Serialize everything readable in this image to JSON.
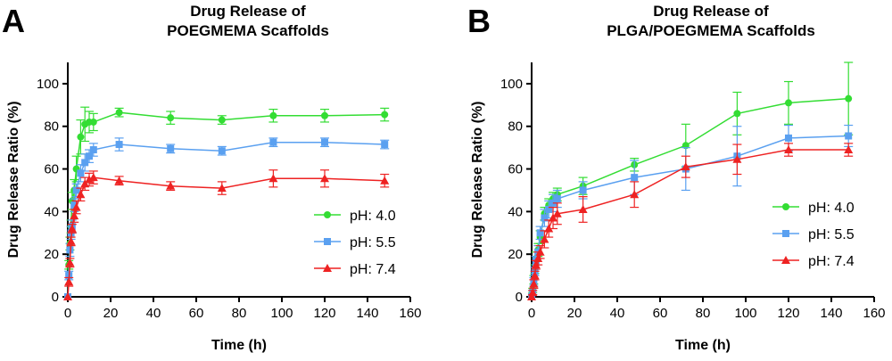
{
  "chart_data": [
    {
      "type": "line",
      "panel_label": "A",
      "title_lines": [
        "Drug Release of",
        "POEGMEMA Scaffolds"
      ],
      "xlabel": "Time (h)",
      "ylabel": "Drug Release Ratio (%)",
      "xlim": [
        0,
        160
      ],
      "ylim": [
        0,
        110
      ],
      "xticks": [
        0,
        20,
        40,
        60,
        80,
        100,
        120,
        140,
        160
      ],
      "yticks": [
        0,
        20,
        40,
        60,
        80,
        100
      ],
      "grid": false,
      "legend_position": "right",
      "series": [
        {
          "name": "pH: 4.0",
          "color": "#33dd33",
          "marker": "circle",
          "x": [
            0,
            0.5,
            1,
            1.5,
            2,
            3,
            4,
            6,
            8,
            10,
            12,
            24,
            48,
            72,
            96,
            120,
            148
          ],
          "y": [
            0,
            15,
            25,
            33,
            45,
            50,
            60,
            75,
            81,
            82,
            82,
            86.5,
            84,
            83,
            85,
            85,
            85.5
          ],
          "err": [
            0,
            2,
            3,
            3,
            4,
            5,
            6,
            8,
            8,
            5,
            4,
            2,
            3,
            2,
            3,
            3,
            3
          ]
        },
        {
          "name": "pH: 5.5",
          "color": "#5aa0f0",
          "marker": "square",
          "x": [
            0,
            0.5,
            1,
            1.5,
            2,
            3,
            4,
            6,
            8,
            10,
            12,
            24,
            48,
            72,
            96,
            120,
            148
          ],
          "y": [
            0,
            10,
            22,
            30,
            33,
            43,
            50,
            58,
            63,
            66,
            69,
            71.5,
            69.5,
            68.5,
            72.5,
            72.5,
            71.5
          ],
          "err": [
            0,
            2,
            3,
            3,
            3,
            3,
            3,
            4,
            4,
            3,
            3,
            3,
            2,
            2,
            2,
            2,
            2
          ]
        },
        {
          "name": "pH: 7.4",
          "color": "#ee2222",
          "marker": "triangle",
          "x": [
            0,
            0.5,
            1,
            1.5,
            2,
            3,
            4,
            6,
            8,
            10,
            12,
            24,
            48,
            72,
            96,
            120,
            148
          ],
          "y": [
            0,
            7,
            16,
            26,
            32,
            38,
            42,
            48,
            53,
            55,
            56,
            54.5,
            52,
            51,
            55.5,
            55.5,
            54.5
          ],
          "err": [
            0,
            2,
            2,
            2,
            2,
            3,
            3,
            3,
            3,
            3,
            3,
            2,
            2,
            3,
            4,
            4,
            3
          ]
        }
      ]
    },
    {
      "type": "line",
      "panel_label": "B",
      "title_lines": [
        "Drug Release of",
        "PLGA/POEGMEMA Scaffolds"
      ],
      "xlabel": "Time (h)",
      "ylabel": "Drug Release Ratio (%)",
      "xlim": [
        0,
        160
      ],
      "ylim": [
        0,
        110
      ],
      "xticks": [
        0,
        20,
        40,
        60,
        80,
        100,
        120,
        140,
        160
      ],
      "yticks": [
        0,
        20,
        40,
        60,
        80,
        100
      ],
      "grid": false,
      "legend_position": "right",
      "series": [
        {
          "name": "pH: 4.0",
          "color": "#33dd33",
          "marker": "circle",
          "x": [
            0,
            0.5,
            1,
            1.5,
            2,
            3,
            4,
            6,
            8,
            10,
            12,
            24,
            48,
            72,
            96,
            120,
            148
          ],
          "y": [
            0,
            3,
            8,
            13,
            18,
            22,
            28,
            39,
            43,
            46,
            48,
            52,
            62,
            71,
            86,
            91,
            93
          ],
          "err": [
            0,
            1,
            2,
            2,
            3,
            3,
            3,
            3,
            3,
            3,
            3,
            4,
            3,
            10,
            10,
            10,
            17
          ]
        },
        {
          "name": "pH: 5.5",
          "color": "#5aa0f0",
          "marker": "square",
          "x": [
            0,
            0.5,
            1,
            1.5,
            2,
            3,
            4,
            6,
            8,
            10,
            12,
            24,
            48,
            72,
            96,
            120,
            148
          ],
          "y": [
            0,
            2,
            7,
            12,
            17,
            21,
            30,
            37,
            41,
            44,
            46,
            50,
            56,
            60,
            66,
            74.5,
            75.5
          ],
          "err": [
            0,
            1,
            2,
            2,
            2,
            3,
            3,
            4,
            4,
            4,
            4,
            4,
            8,
            10,
            14,
            6,
            5
          ]
        },
        {
          "name": "pH: 7.4",
          "color": "#ee2222",
          "marker": "triangle",
          "x": [
            0,
            0.5,
            1,
            1.5,
            2,
            3,
            4,
            6,
            8,
            10,
            12,
            24,
            48,
            72,
            96,
            120,
            148
          ],
          "y": [
            0,
            2,
            6,
            10,
            15,
            18,
            21,
            27,
            32,
            37,
            39,
            41,
            48,
            61,
            64.5,
            69,
            69
          ],
          "err": [
            0,
            1,
            2,
            2,
            2,
            3,
            3,
            4,
            4,
            5,
            5,
            6,
            6,
            5,
            7,
            3,
            3
          ]
        }
      ]
    }
  ]
}
